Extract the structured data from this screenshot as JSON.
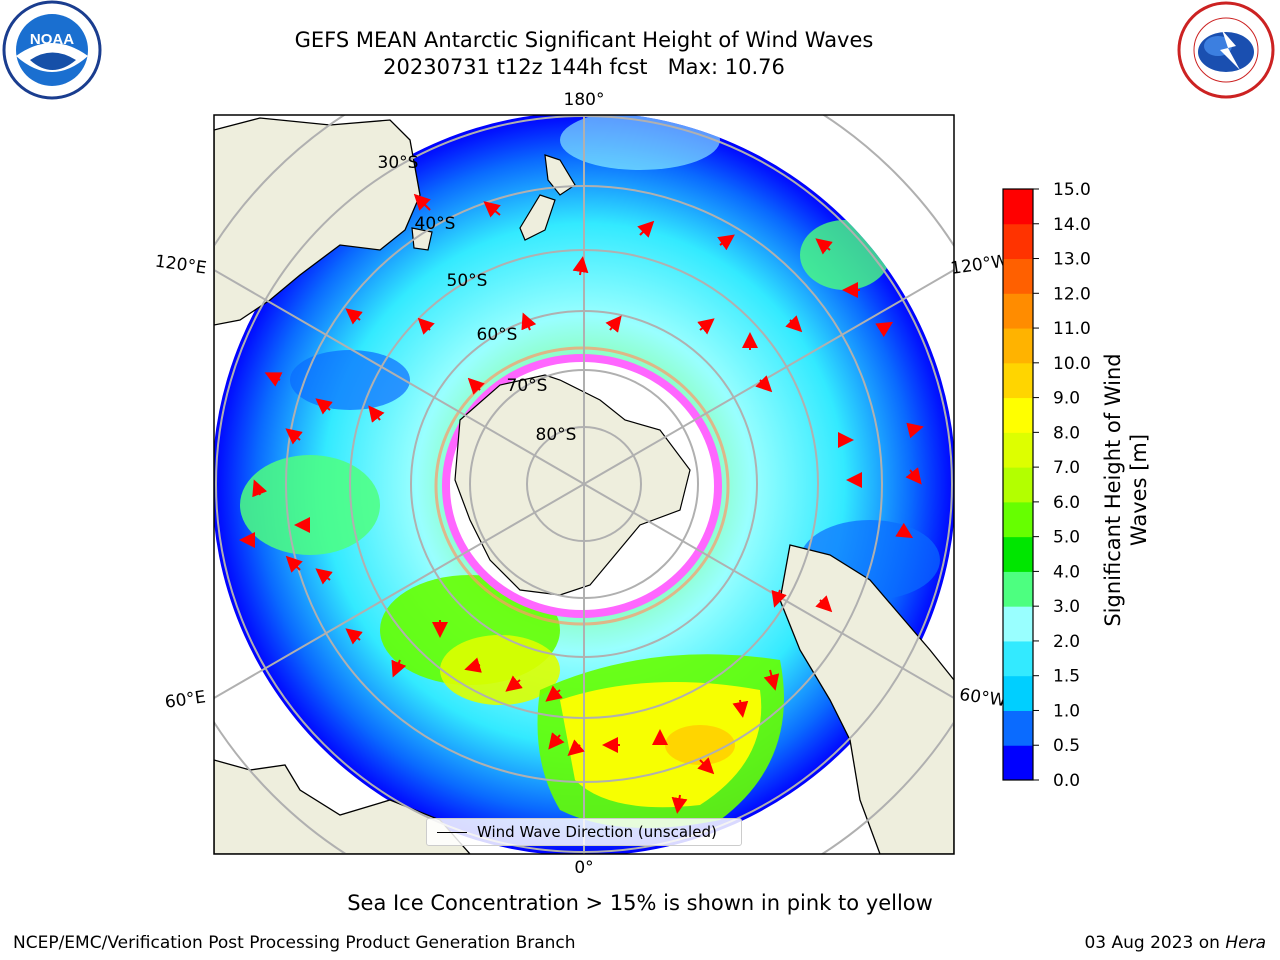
{
  "title": {
    "line1": "GEFS MEAN Antarctic Significant Height of Wind Waves",
    "line2": "20230731 t12z 144h fcst   Max: 10.76"
  },
  "map": {
    "projection": "south-polar-stereographic",
    "longitude_labels": {
      "top": "180°",
      "bottom": "0°",
      "upper_left": "120°E",
      "upper_right": "120°W",
      "lower_left": "60°E",
      "lower_right": "60°W"
    },
    "latitude_labels": [
      "30°S",
      "40°S",
      "50°S",
      "60°S",
      "70°S",
      "80°S"
    ],
    "legend_label": "Wind Wave Direction (unscaled)"
  },
  "colorbar": {
    "label": "Significant Height of Wind Waves [m]",
    "ticks": [
      "0.0",
      "0.5",
      "1.0",
      "1.5",
      "2.0",
      "3.0",
      "4.0",
      "5.0",
      "6.0",
      "7.0",
      "8.0",
      "9.0",
      "10.0",
      "11.0",
      "12.0",
      "13.0",
      "14.0",
      "15.0"
    ],
    "colors": [
      "#0000ff",
      "#0a6bff",
      "#00cfff",
      "#33eaff",
      "#99ffff",
      "#4dff80",
      "#00e600",
      "#66ff00",
      "#b3ff00",
      "#ddff00",
      "#ffff00",
      "#ffd500",
      "#ffb300",
      "#ff8c00",
      "#ff6000",
      "#ff3300",
      "#ff0000"
    ]
  },
  "caption": "Sea Ice Concentration > 15% is shown in pink to yellow",
  "credits": {
    "left": "NCEP/EMC/Verification Post Processing Product Generation Branch",
    "right_date": "03 Aug 2023 on ",
    "right_host": "Hera"
  },
  "logos": {
    "left": "NOAA",
    "right": "NATIONAL WEATHER SERVICE"
  }
}
